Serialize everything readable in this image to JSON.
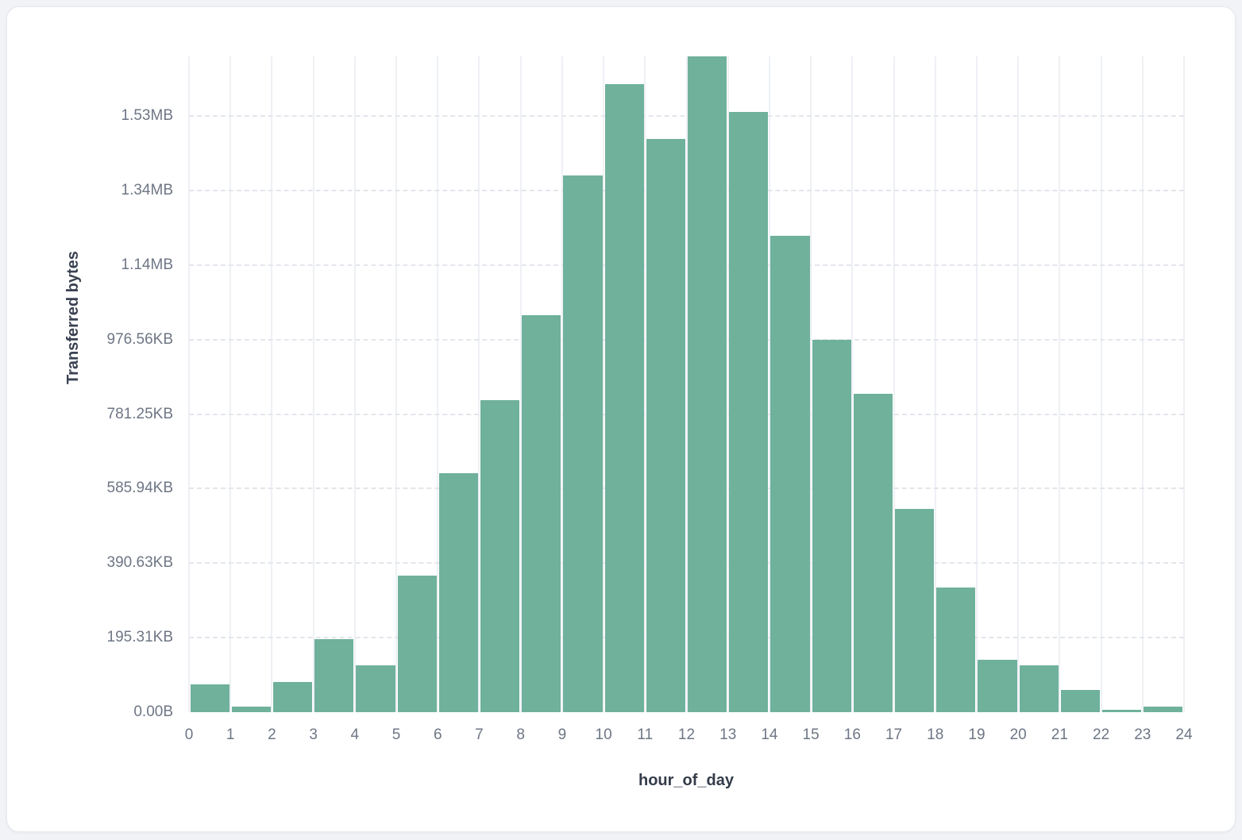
{
  "page": {
    "background_color": "#f1f3f6",
    "card_background_color": "#ffffff"
  },
  "chart_data": {
    "type": "bar",
    "title": "",
    "xlabel": "hour_of_day",
    "ylabel": "Transferred bytes",
    "bar_color": "#6fb19b",
    "grid": {
      "vertical": "solid",
      "horizontal": "dashed",
      "vertical_color": "#eef0f4",
      "horizontal_color": "#e3e6ec"
    },
    "tick_label_color": "#6e7685",
    "axis_title_color": "#3a4252",
    "ylim": [
      0,
      1760000
    ],
    "y_units": "bytes",
    "x_tick_labels": [
      "0",
      "1",
      "2",
      "3",
      "4",
      "5",
      "6",
      "7",
      "8",
      "9",
      "10",
      "11",
      "12",
      "13",
      "14",
      "15",
      "16",
      "17",
      "18",
      "19",
      "20",
      "21",
      "22",
      "23",
      "24"
    ],
    "y_ticks": [
      {
        "label": "0.00B",
        "value": 0
      },
      {
        "label": "195.31KB",
        "value": 200000
      },
      {
        "label": "390.63KB",
        "value": 400000
      },
      {
        "label": "585.94KB",
        "value": 600000
      },
      {
        "label": "781.25KB",
        "value": 800000
      },
      {
        "label": "976.56KB",
        "value": 1000000
      },
      {
        "label": "1.14MB",
        "value": 1200000
      },
      {
        "label": "1.34MB",
        "value": 1400000
      },
      {
        "label": "1.53MB",
        "value": 1600000
      }
    ],
    "categories": [
      0,
      1,
      2,
      3,
      4,
      5,
      6,
      7,
      8,
      9,
      10,
      11,
      12,
      13,
      14,
      15,
      16,
      17,
      18,
      19,
      20,
      21,
      22,
      23
    ],
    "values": [
      75000,
      16000,
      80000,
      196000,
      125000,
      367000,
      641000,
      838000,
      1065000,
      1440000,
      1685000,
      1539000,
      1760000,
      1610000,
      1279000,
      1000000,
      854000,
      546000,
      335000,
      140000,
      125000,
      59000,
      6000,
      14000
    ]
  }
}
